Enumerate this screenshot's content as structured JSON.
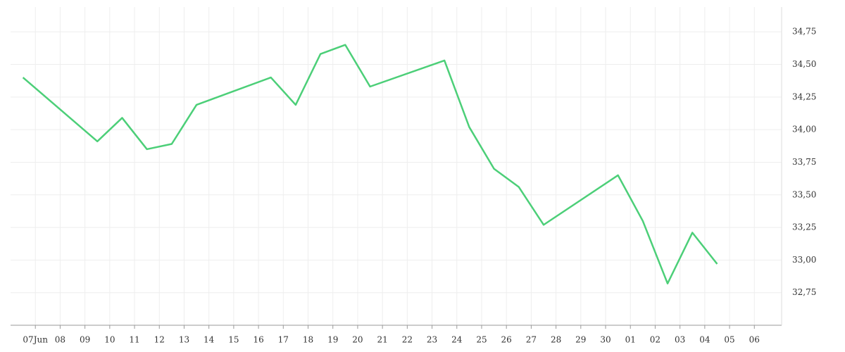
{
  "chart_data": {
    "type": "line",
    "x": [
      -0.5,
      2.5,
      3.5,
      4.5,
      5.5,
      6.5,
      9.5,
      10.5,
      11.5,
      12.5,
      13.5,
      16.5,
      17.5,
      18.5,
      19.5,
      20.5,
      23.5,
      24.5,
      25.5,
      26.5,
      27.5
    ],
    "series": [
      {
        "color": "#4ccf78",
        "values": [
          34.4,
          33.91,
          34.09,
          33.85,
          33.89,
          34.19,
          34.4,
          34.19,
          34.58,
          34.65,
          34.33,
          34.53,
          34.02,
          33.7,
          33.56,
          33.27,
          33.65,
          33.3,
          32.82,
          33.21,
          32.97
        ]
      }
    ],
    "xlim": [
      -1,
      30.1
    ],
    "xticks": [
      {
        "value": 0,
        "label": "07Jun"
      },
      {
        "value": 1,
        "label": "08"
      },
      {
        "value": 2,
        "label": "09"
      },
      {
        "value": 3,
        "label": "10"
      },
      {
        "value": 4,
        "label": "11"
      },
      {
        "value": 5,
        "label": "12"
      },
      {
        "value": 6,
        "label": "13"
      },
      {
        "value": 7,
        "label": "14"
      },
      {
        "value": 8,
        "label": "15"
      },
      {
        "value": 9,
        "label": "16"
      },
      {
        "value": 10,
        "label": "17"
      },
      {
        "value": 11,
        "label": "18"
      },
      {
        "value": 12,
        "label": "19"
      },
      {
        "value": 13,
        "label": "20"
      },
      {
        "value": 14,
        "label": "21"
      },
      {
        "value": 15,
        "label": "22"
      },
      {
        "value": 16,
        "label": "23"
      },
      {
        "value": 17,
        "label": "24"
      },
      {
        "value": 18,
        "label": "25"
      },
      {
        "value": 19,
        "label": "26"
      },
      {
        "value": 20,
        "label": "27"
      },
      {
        "value": 21,
        "label": "28"
      },
      {
        "value": 22,
        "label": "29"
      },
      {
        "value": 23,
        "label": "30"
      },
      {
        "value": 24,
        "label": "01"
      },
      {
        "value": 25,
        "label": "02"
      },
      {
        "value": 26,
        "label": "03"
      },
      {
        "value": 27,
        "label": "04"
      },
      {
        "value": 28,
        "label": "05"
      },
      {
        "value": 29,
        "label": "06"
      }
    ],
    "ylim": [
      32.5,
      34.94
    ],
    "yticks": [
      {
        "value": 32.75,
        "label": "32,75"
      },
      {
        "value": 33,
        "label": "33,00"
      },
      {
        "value": 33.25,
        "label": "33,25"
      },
      {
        "value": 33.5,
        "label": "33,50"
      },
      {
        "value": 33.75,
        "label": "33,75"
      },
      {
        "value": 34,
        "label": "34,00"
      },
      {
        "value": 34.25,
        "label": "34,25"
      },
      {
        "value": 34.5,
        "label": "34,50"
      },
      {
        "value": 34.75,
        "label": "34,75"
      }
    ],
    "grid": true
  }
}
